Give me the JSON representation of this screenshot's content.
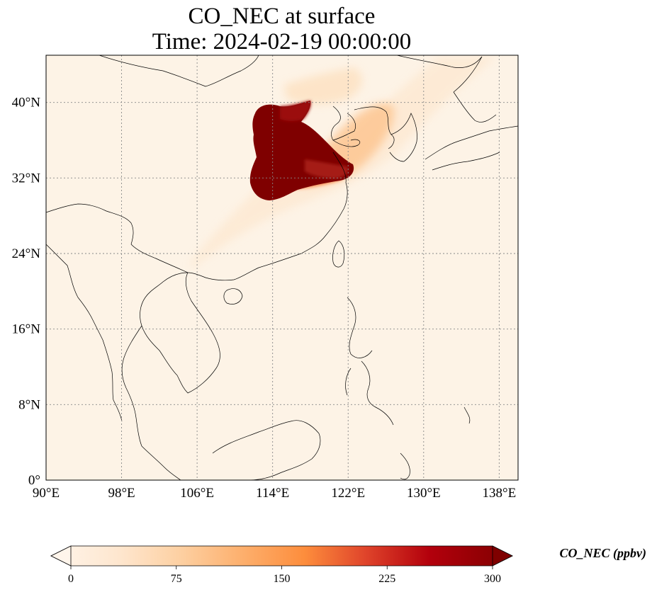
{
  "title": {
    "line1": "CO_NEC at surface",
    "line2": "Time: 2024-02-19 00:00:00"
  },
  "map": {
    "lon_range": [
      90,
      140
    ],
    "lat_range": [
      0,
      45
    ],
    "lon_ticks": [
      {
        "value": 90,
        "label": "90°E"
      },
      {
        "value": 98,
        "label": "98°E"
      },
      {
        "value": 106,
        "label": "106°E"
      },
      {
        "value": 114,
        "label": "114°E"
      },
      {
        "value": 122,
        "label": "122°E"
      },
      {
        "value": 130,
        "label": "130°E"
      },
      {
        "value": 138,
        "label": "138°E"
      }
    ],
    "lat_ticks": [
      {
        "value": 0,
        "label": "0°"
      },
      {
        "value": 8,
        "label": "8°N"
      },
      {
        "value": 16,
        "label": "16°N"
      },
      {
        "value": 24,
        "label": "24°N"
      },
      {
        "value": 32,
        "label": "32°N"
      },
      {
        "value": 40,
        "label": "40°N"
      }
    ],
    "gridlines": true,
    "background_color": "#fdf3e6"
  },
  "colorbar": {
    "label": "CO_NEC (ppbv)",
    "min": 0,
    "max": 300,
    "ticks": [
      "0",
      "75",
      "150",
      "225",
      "300"
    ],
    "colors": [
      "#fff5eb",
      "#fee6ce",
      "#fdd0a2",
      "#fdae6b",
      "#fd8d3c",
      "#f16913",
      "#d94801",
      "#a63603",
      "#7f0000"
    ]
  }
}
